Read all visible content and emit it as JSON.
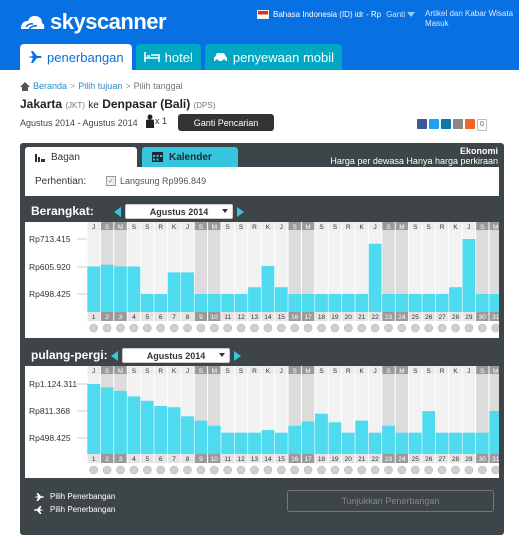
{
  "header": {
    "brand": "skyscanner",
    "language": "Bahasa Indonesia (ID) idr - Rp",
    "change_label": "Ganti",
    "links": "Artikel dan Kabar Wisata Masuk",
    "tabs": [
      {
        "label": "penerbangan",
        "icon": "plane-icon",
        "active": true
      },
      {
        "label": "hotel",
        "icon": "bed-icon",
        "active": false
      },
      {
        "label": "penyewaan mobil",
        "icon": "car-icon",
        "active": false
      }
    ]
  },
  "breadcrumbs": [
    "Beranda",
    "Pilih tujuan",
    "Pilih tanggal"
  ],
  "route": {
    "from_city": "Jakarta",
    "from_code": "(JKT)",
    "connector": "ke",
    "to_city": "Denpasar (Bali)",
    "to_code": "(DPS)"
  },
  "dates_text": "Agustus 2014 - Agustus 2014",
  "passengers": "x 1",
  "search_button": "Ganti Pencarian",
  "share_count": "0",
  "panel": {
    "tab_chart": "Bagan",
    "tab_calendar": "Kalender",
    "cabin": "Ekonomi",
    "price_note": "Harga per dewasa Hanya harga perkiraan",
    "stops_label": "Perhentian:",
    "stops_option": "Langsung Rp996.849",
    "outbound_title": "Berangkat:",
    "return_title": "pulang-pergi:",
    "month": "Agustus 2014",
    "legend_outbound": "Pilih Penerbangan",
    "legend_return": "Pilih Penerbangan",
    "show_button": "Tunjukkan Penerbangan"
  },
  "colors": {
    "brand": "#0770e3",
    "bar": "#4fdbef",
    "panel": "#3d4549",
    "tab_cyan": "#37c5de"
  },
  "chart_data": [
    {
      "type": "bar",
      "title": "Berangkat:",
      "categories": [
        "1",
        "2",
        "3",
        "4",
        "5",
        "6",
        "7",
        "8",
        "9",
        "10",
        "11",
        "12",
        "13",
        "14",
        "15",
        "16",
        "17",
        "18",
        "19",
        "20",
        "21",
        "22",
        "23",
        "24",
        "25",
        "26",
        "27",
        "28",
        "29",
        "30",
        "31"
      ],
      "days": [
        "J",
        "S",
        "M",
        "S",
        "S",
        "R",
        "K",
        "J",
        "S",
        "M",
        "S",
        "S",
        "R",
        "K",
        "J",
        "S",
        "M",
        "S",
        "S",
        "R",
        "K",
        "J",
        "S",
        "M",
        "S",
        "S",
        "R",
        "K",
        "J",
        "S",
        "M"
      ],
      "yticks": [
        "Rp713.415",
        "Rp605.920",
        "Rp498.425"
      ],
      "values": [
        605920,
        613000,
        606000,
        605920,
        498425,
        498425,
        583000,
        583000,
        498425,
        498425,
        498425,
        498425,
        525000,
        608000,
        525000,
        498425,
        498425,
        498425,
        498425,
        498425,
        498425,
        695000,
        498425,
        498425,
        498425,
        498425,
        498425,
        525000,
        713415,
        498425,
        498425
      ]
    },
    {
      "type": "bar",
      "title": "pulang-pergi:",
      "categories": [
        "1",
        "2",
        "3",
        "4",
        "5",
        "6",
        "7",
        "8",
        "9",
        "10",
        "11",
        "12",
        "13",
        "14",
        "15",
        "16",
        "17",
        "18",
        "19",
        "20",
        "21",
        "22",
        "23",
        "24",
        "25",
        "26",
        "27",
        "28",
        "29",
        "30",
        "31"
      ],
      "days": [
        "J",
        "S",
        "M",
        "S",
        "S",
        "R",
        "K",
        "J",
        "S",
        "M",
        "S",
        "S",
        "R",
        "K",
        "J",
        "S",
        "M",
        "S",
        "S",
        "R",
        "K",
        "J",
        "S",
        "M",
        "S",
        "S",
        "R",
        "K",
        "J",
        "S",
        "M"
      ],
      "yticks": [
        "Rp1.124.311",
        "Rp811.368",
        "Rp498.425"
      ],
      "values": [
        1124311,
        1085000,
        1045000,
        980000,
        930000,
        870000,
        855000,
        750000,
        700000,
        640000,
        560000,
        560000,
        560000,
        590000,
        560000,
        640000,
        690000,
        780000,
        680000,
        560000,
        700000,
        560000,
        640000,
        560000,
        560000,
        810000,
        560000,
        560000,
        560000,
        560000,
        811368
      ]
    }
  ]
}
